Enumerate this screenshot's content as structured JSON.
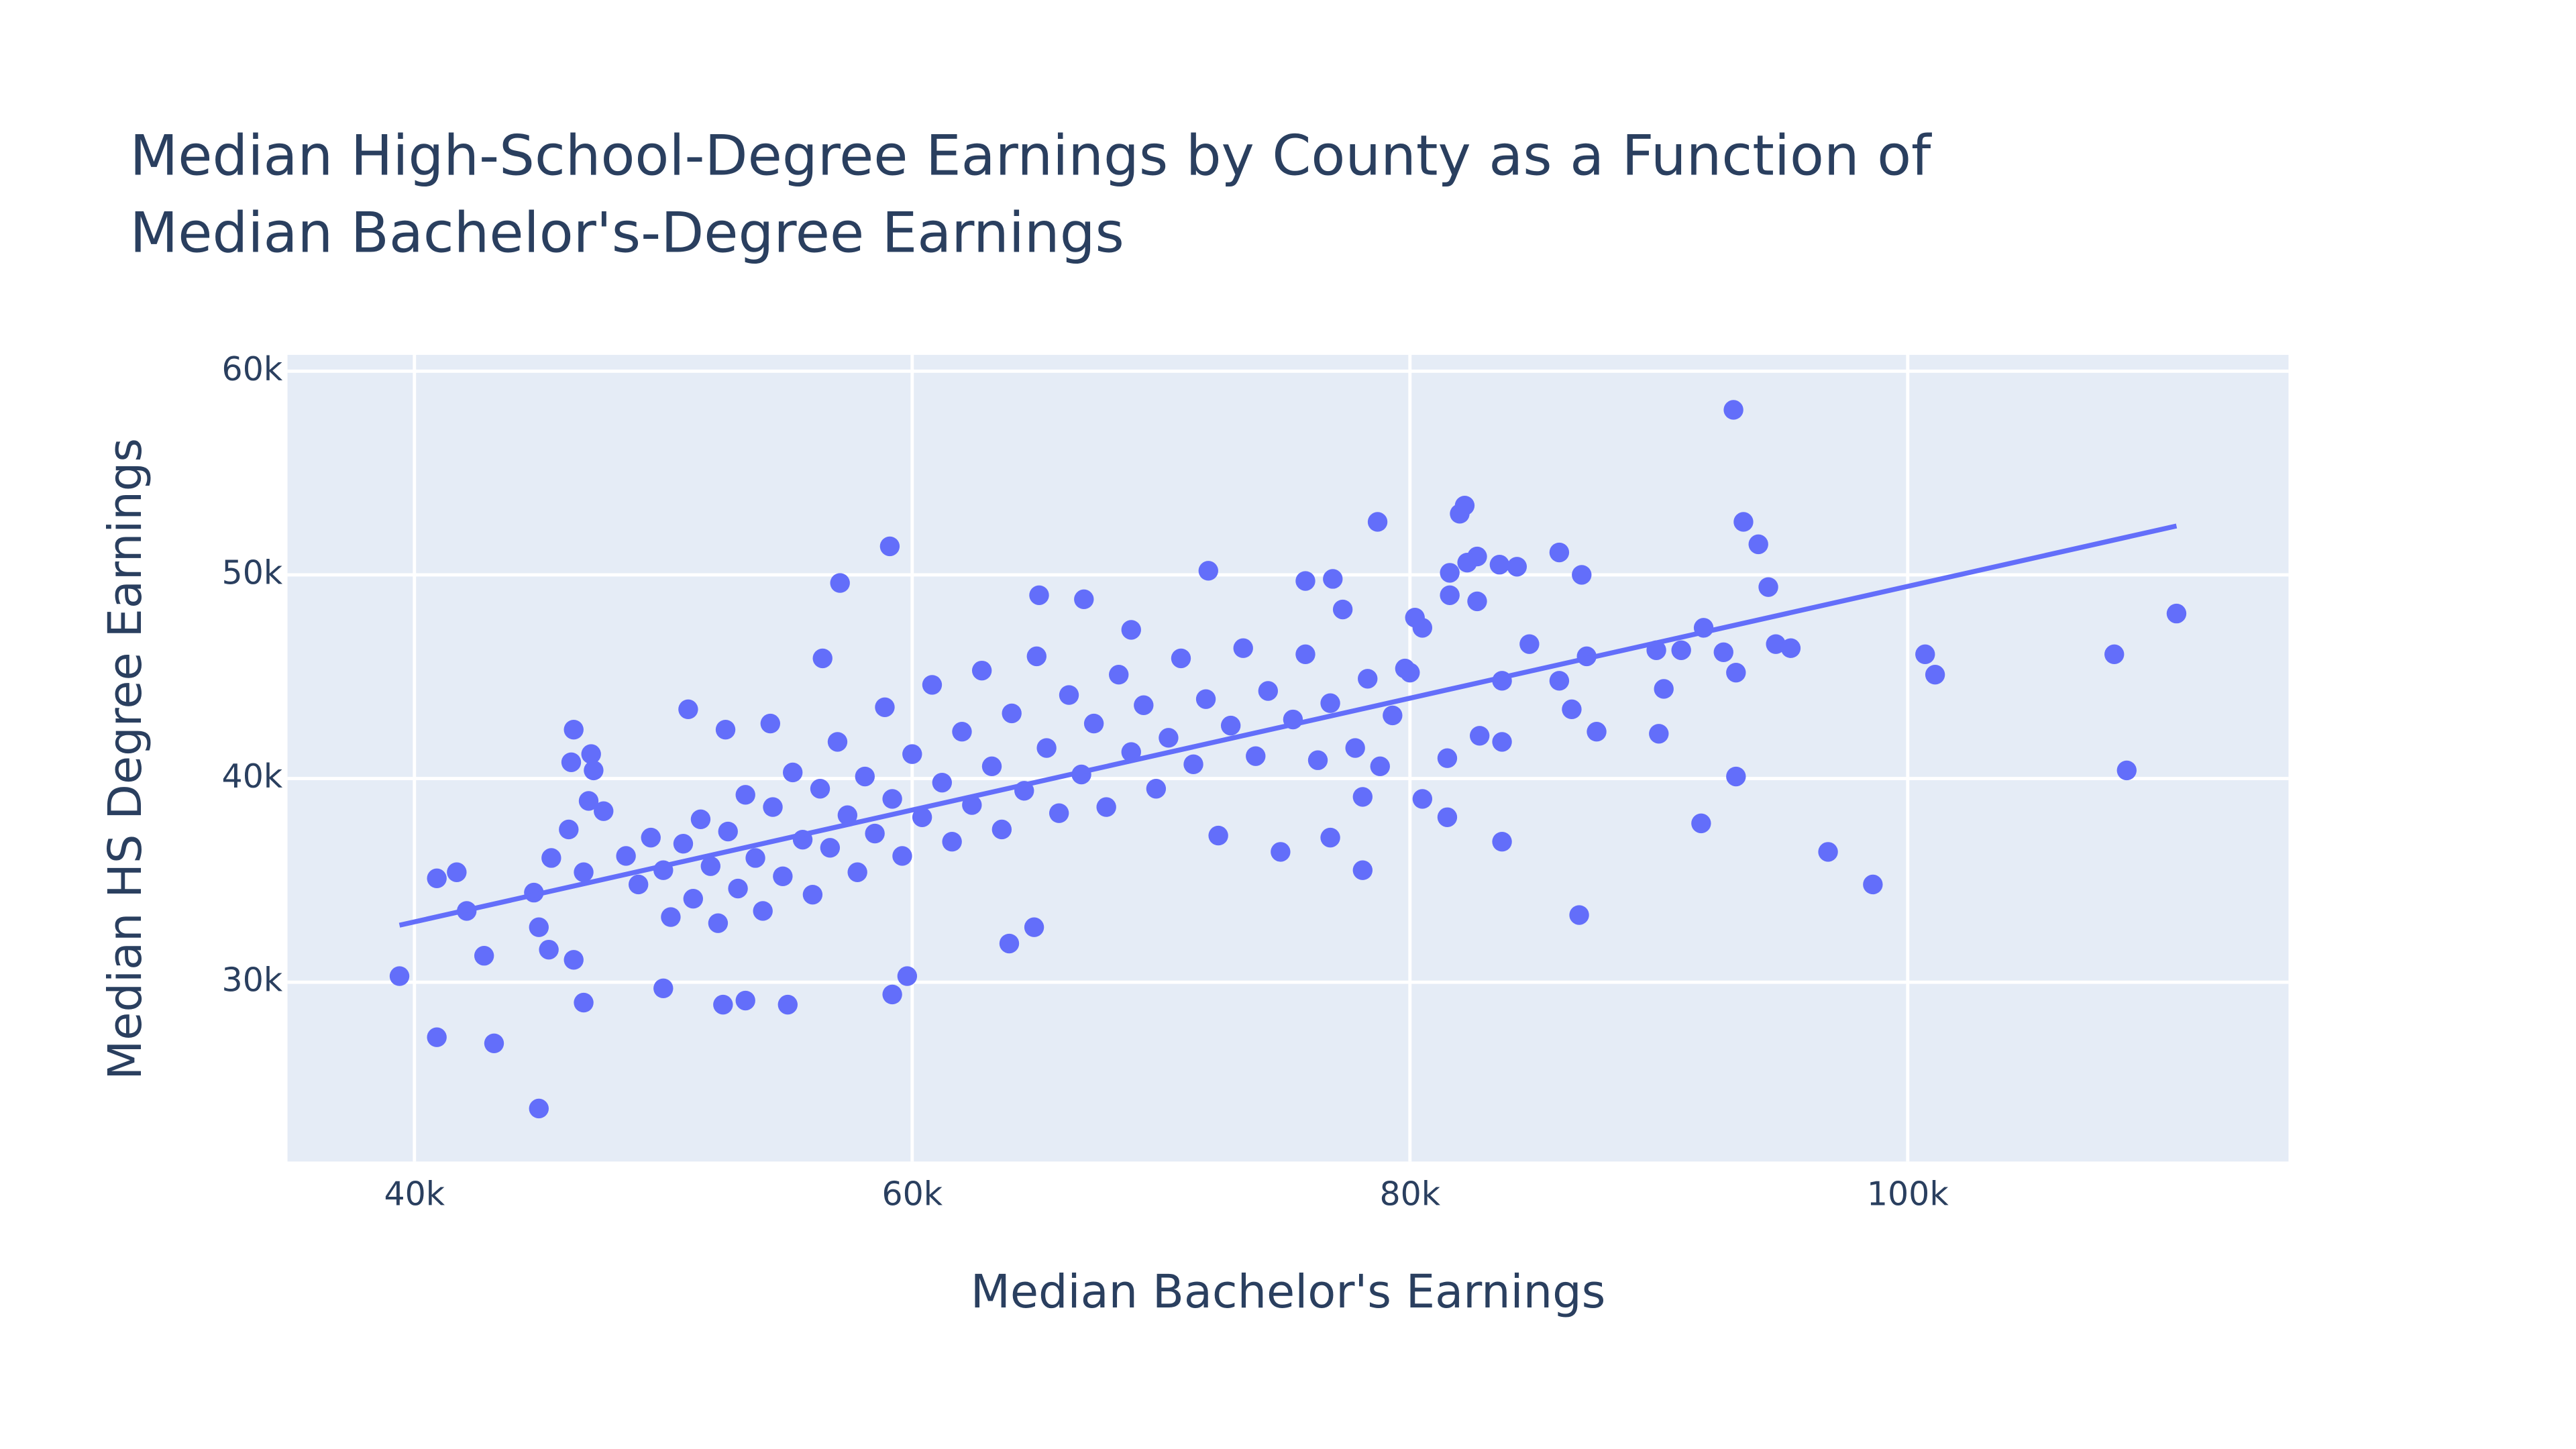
{
  "chart_data": {
    "type": "scatter",
    "title": [
      "Median High-School-Degree Earnings by County as a Function of",
      "Median Bachelor's-Degree Earnings"
    ],
    "x_label": "Median Bachelor's Earnings",
    "y_label": "Median HS Degree Earnings",
    "xlim": [
      34900,
      115300
    ],
    "ylim": [
      21200,
      60800
    ],
    "xticks": [
      {
        "value": 40000,
        "label": "40k"
      },
      {
        "value": 60000,
        "label": "60k"
      },
      {
        "value": 80000,
        "label": "80k"
      },
      {
        "value": 100000,
        "label": "100k"
      }
    ],
    "yticks": [
      {
        "value": 30000,
        "label": "30k"
      },
      {
        "value": 40000,
        "label": "40k"
      },
      {
        "value": 50000,
        "label": "50k"
      },
      {
        "value": 60000,
        "label": "60k"
      }
    ],
    "grid": true,
    "series": [
      {
        "mode": "markers",
        "color": "#636efa",
        "x": [
          39400,
          40900,
          43200,
          45000,
          40900,
          41700,
          42100,
          42800,
          44800,
          45500,
          46400,
          47100,
          46300,
          47200,
          46800,
          45000,
          45400,
          46400,
          46800,
          46200,
          47600,
          47000,
          93000,
          93400,
          94000,
          94400,
          94700,
          95300,
          93100,
          93100,
          91700,
          96800,
          98600,
          100700,
          101100,
          108300,
          108800,
          110800,
          86800,
          83700,
          78700,
          82000,
          82200,
          59100,
          90000,
          90200,
          89900,
          90900,
          91800,
          92600,
          87500,
          86500,
          86000,
          87100,
          86900,
          86000,
          84300,
          82700,
          82300,
          81600,
          81600,
          80500,
          80200,
          82700,
          83600,
          84800,
          83700,
          83700,
          82800,
          81500,
          80500,
          78100,
          76800,
          78100,
          81500,
          80000,
          76900,
          75800,
          71900,
          68800,
          65100,
          66900,
          57100,
          56400,
          63900,
          64900,
          59200,
          59800,
          55000,
          53300,
          52400,
          50000,
          51000,
          54300,
          52500,
          48500,
          49000,
          49500,
          50000,
          50300,
          50800,
          51200,
          51500,
          51900,
          52200,
          52600,
          53000,
          53300,
          53700,
          54000,
          54400,
          54800,
          55200,
          55600,
          56000,
          56300,
          56700,
          57000,
          57400,
          57800,
          58100,
          58500,
          58900,
          59200,
          59600,
          60000,
          60400,
          60800,
          61200,
          61600,
          62000,
          62400,
          62800,
          63200,
          63600,
          64000,
          64500,
          65000,
          65400,
          65900,
          66300,
          66800,
          67300,
          67800,
          68300,
          68800,
          69300,
          69800,
          70300,
          70800,
          71300,
          71800,
          72300,
          72800,
          73300,
          73800,
          74300,
          74800,
          75300,
          75800,
          76300,
          76800,
          77300,
          77800,
          78300,
          78800,
          79300,
          79800
        ],
        "y": [
          30300,
          27300,
          27000,
          23800,
          35100,
          35400,
          33500,
          31300,
          34400,
          36100,
          42400,
          41200,
          40800,
          40400,
          29000,
          32700,
          31600,
          31100,
          35400,
          37500,
          38400,
          38900,
          58100,
          52600,
          51500,
          49400,
          46600,
          46400,
          45200,
          40100,
          37800,
          36400,
          34800,
          46100,
          45100,
          46100,
          40400,
          48100,
          33300,
          36900,
          52600,
          53000,
          53400,
          51400,
          42200,
          44400,
          46300,
          46300,
          47400,
          46200,
          42300,
          43400,
          44800,
          46000,
          50000,
          51100,
          50400,
          50900,
          50600,
          50100,
          49000,
          47400,
          47900,
          48700,
          50500,
          46600,
          44800,
          41800,
          42100,
          38100,
          39000,
          35500,
          37100,
          39100,
          41000,
          45200,
          49800,
          49700,
          50200,
          47300,
          49000,
          48800,
          49600,
          45900,
          31900,
          32700,
          29400,
          30300,
          28900,
          29100,
          28900,
          29700,
          43400,
          42700,
          42400,
          36200,
          34800,
          37100,
          35500,
          33200,
          36800,
          34100,
          38000,
          35700,
          32900,
          37400,
          34600,
          39200,
          36100,
          33500,
          38600,
          35200,
          40300,
          37000,
          34300,
          39500,
          36600,
          41800,
          38200,
          35400,
          40100,
          37300,
          43500,
          39000,
          36200,
          41200,
          38100,
          44600,
          39800,
          36900,
          42300,
          38700,
          45300,
          40600,
          37500,
          43200,
          39400,
          46000,
          41500,
          38300,
          44100,
          40200,
          42700,
          38600,
          45100,
          41300,
          43600,
          39500,
          42000,
          45900,
          40700,
          43900,
          37200,
          42600,
          46400,
          41100,
          44300,
          36400,
          42900,
          46100,
          40900,
          43700,
          48300,
          41500,
          44900,
          40600,
          43100,
          45400
        ]
      },
      {
        "mode": "lines",
        "color": "#636efa",
        "x": [
          39400,
          110800
        ],
        "y": [
          32800,
          52400
        ]
      }
    ]
  }
}
